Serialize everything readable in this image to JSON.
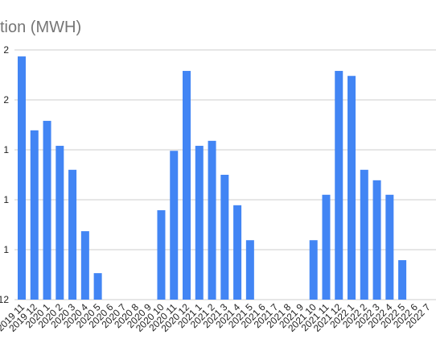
{
  "chart_data": {
    "type": "bar",
    "title": "tion (MWH)",
    "categories": [
      "2019 11",
      "2019 12",
      "2020 1",
      "2020 2",
      "2020 3",
      "2020 4",
      "2020 5",
      "2020 6",
      "2020 7",
      "2020 8",
      "2020 9",
      "2020 10",
      "2020 11",
      "2020 12",
      "2021 1",
      "2021 2",
      "2021 3",
      "2021 4",
      "2021 5",
      "2021 6",
      "2021 7",
      "2021 8",
      "2021 9",
      "2021 10",
      "2021 11",
      "2021 12",
      "2022 1",
      "2022 2",
      "2022 3",
      "2022 4",
      "2022 5",
      "2022 6",
      "2022 7"
    ],
    "values": [
      4.87,
      3.39,
      3.58,
      3.08,
      2.6,
      1.37,
      0.53,
      0,
      0,
      0,
      0,
      1.79,
      2.98,
      4.58,
      3.08,
      3.18,
      2.5,
      1.89,
      1.19,
      0,
      0,
      0,
      0,
      1.19,
      2.1,
      4.58,
      4.48,
      2.6,
      2.39,
      2.1,
      0.79,
      0,
      0
    ],
    "color": "#4285f4",
    "ylim": [
      0,
      5
    ],
    "yticks": [
      {
        "value": 0,
        "label": "12"
      },
      {
        "value": 1,
        "label": "1"
      },
      {
        "value": 2,
        "label": "1"
      },
      {
        "value": 3,
        "label": "1"
      },
      {
        "value": 4,
        "label": "2"
      },
      {
        "value": 5,
        "label": "2"
      }
    ],
    "grid": true
  }
}
